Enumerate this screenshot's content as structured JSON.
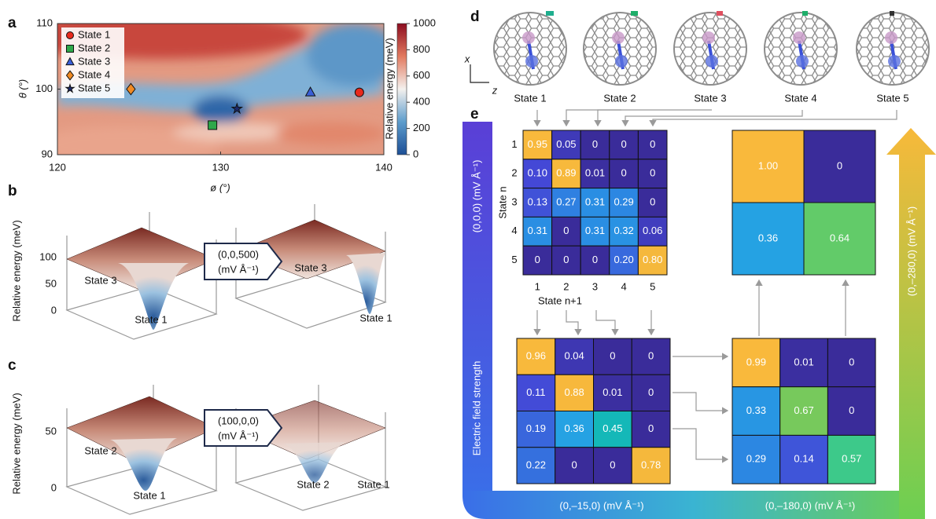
{
  "panel_a": {
    "label": "a",
    "y_axis_label": "θ (°)",
    "x_axis_label": "ø (°)",
    "xlim": [
      120,
      140
    ],
    "xticks": [
      120,
      130,
      140
    ],
    "ylim": [
      90,
      110
    ],
    "yticks": [
      90,
      100,
      110
    ],
    "colorbar_label": "Relative energy (meV)",
    "colorbar_lim": [
      0,
      1000
    ],
    "colorbar_ticks": [
      0,
      200,
      400,
      600,
      800,
      1000
    ],
    "states": [
      {
        "name": "State 1",
        "phi": 138.5,
        "theta": 99.5,
        "marker": "circle",
        "color": "#e8291c"
      },
      {
        "name": "State 2",
        "phi": 129.5,
        "theta": 94.5,
        "marker": "square",
        "color": "#2ea84a"
      },
      {
        "name": "State 3",
        "phi": 135.5,
        "theta": 99.5,
        "marker": "triangle",
        "color": "#3a5fd8"
      },
      {
        "name": "State 4",
        "phi": 124.5,
        "theta": 100,
        "marker": "diamond",
        "color": "#f08a24"
      },
      {
        "name": "State 5",
        "phi": 131,
        "theta": 97,
        "marker": "star",
        "color": "#1c2a6e"
      }
    ]
  },
  "panel_b": {
    "label": "b",
    "y_axis_label": "Relative energy (meV)",
    "zticks": [
      100,
      50,
      0
    ],
    "left_labels": [
      "State 3",
      "State 1"
    ],
    "right_labels": [
      "State 3",
      "State 1"
    ],
    "field": "(0,0,500)",
    "field_unit": "(mV Å⁻¹)"
  },
  "panel_c": {
    "label": "c",
    "y_axis_label": "Relative energy (meV)",
    "zticks": [
      50,
      0
    ],
    "left_labels": [
      "State 2",
      "State 1"
    ],
    "right_labels": [
      "State 2",
      "State 1"
    ],
    "field": "(100,0,0)",
    "field_unit": "(mV Å⁻¹)"
  },
  "panel_d": {
    "label": "d",
    "axis_x": "x",
    "axis_z": "z",
    "states": [
      "State 1",
      "State 2",
      "State 3",
      "State 4",
      "State 5"
    ]
  },
  "panel_e": {
    "label": "e",
    "left_top": "(0,0,0) (mV Å⁻¹)",
    "left_bottom": "Electric field strength",
    "bottom_1": "(0,–15,0) (mV Å⁻¹)",
    "bottom_2": "(0,–180,0) (mV Å⁻¹)",
    "right": "(0,–280,0) (mV Å⁻¹)",
    "row_axis": "State n",
    "col_axis": "State n+1",
    "row_labels": [
      "1",
      "2",
      "3",
      "4",
      "5"
    ],
    "col_labels": [
      "1",
      "2",
      "3",
      "4",
      "5"
    ],
    "matrices": [
      [
        [
          "0.95",
          "0.05",
          "0",
          "0",
          "0"
        ],
        [
          "0.10",
          "0.89",
          "0.01",
          "0",
          "0"
        ],
        [
          "0.13",
          "0.27",
          "0.31",
          "0.29",
          "0"
        ],
        [
          "0.31",
          "0",
          "0.31",
          "0.32",
          "0.06"
        ],
        [
          "0",
          "0",
          "0",
          "0.20",
          "0.80"
        ]
      ],
      [
        [
          "0.96",
          "0.04",
          "0",
          "0"
        ],
        [
          "0.11",
          "0.88",
          "0.01",
          "0"
        ],
        [
          "0.19",
          "0.36",
          "0.45",
          "0"
        ],
        [
          "0.22",
          "0",
          "0",
          "0.78"
        ]
      ],
      [
        [
          "0.99",
          "0.01",
          "0"
        ],
        [
          "0.33",
          "0.67",
          "0"
        ],
        [
          "0.29",
          "0.14",
          "0.57"
        ]
      ],
      [
        [
          "1.00",
          "0"
        ],
        [
          "0.36",
          "0.64"
        ]
      ]
    ]
  }
}
